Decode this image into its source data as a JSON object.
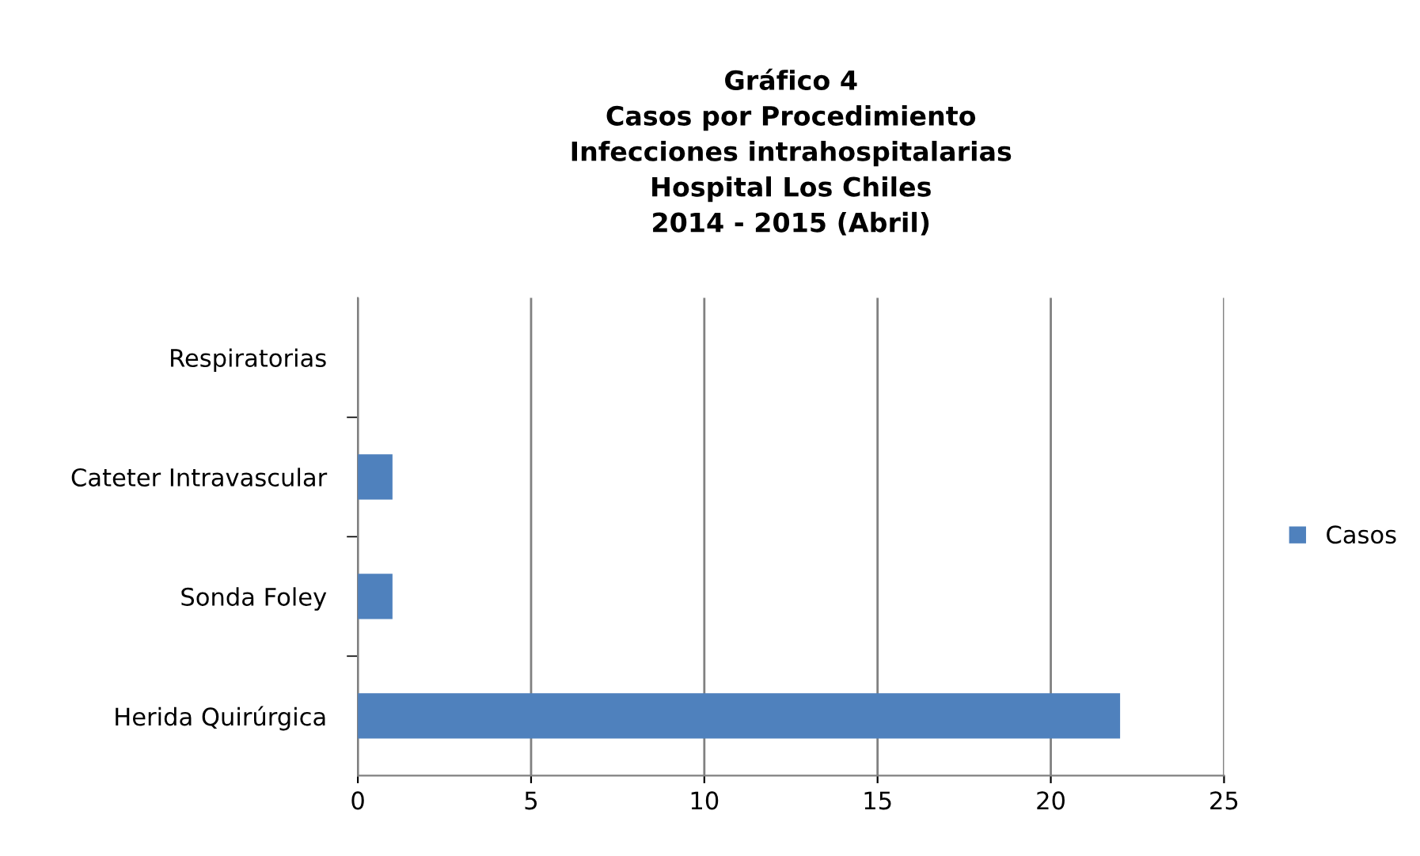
{
  "chart_data": {
    "type": "bar",
    "orientation": "horizontal",
    "title": "Gráfico 4\nCasos por Procedimiento\nInfecciones intrahospitalarias\nHospital Los Chiles\n2014 - 2015 (Abril)",
    "categories": [
      "Respiratorias",
      "Cateter Intravascular",
      "Sonda Foley",
      "Herida Quirúrgica"
    ],
    "series": [
      {
        "name": "Casos",
        "color": "#4f81bd",
        "values": [
          0,
          1,
          1,
          22
        ]
      }
    ],
    "xlim": [
      0,
      25
    ],
    "xticks": [
      0,
      5,
      10,
      15,
      20,
      25
    ],
    "grid": "x",
    "legend": "right"
  }
}
